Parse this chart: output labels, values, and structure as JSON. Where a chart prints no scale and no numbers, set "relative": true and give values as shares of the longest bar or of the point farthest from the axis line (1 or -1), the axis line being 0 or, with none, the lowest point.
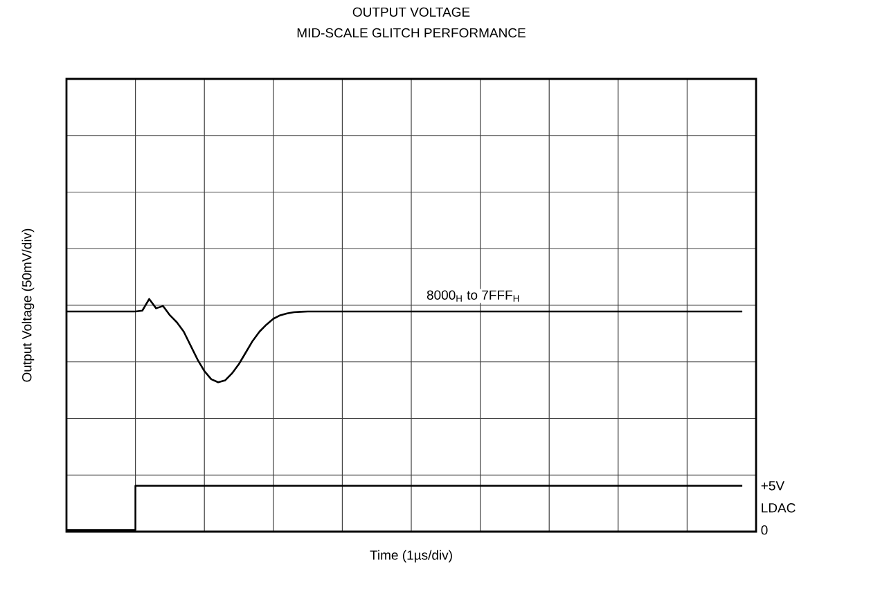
{
  "chart_data": {
    "type": "line",
    "title": "OUTPUT VOLTAGE",
    "subtitle": "MID-SCALE GLITCH PERFORMANCE",
    "xlabel": "Time (1µs/div)",
    "ylabel": "Output Voltage (50mV/div)",
    "relative": true,
    "grid": true,
    "tick_labels": false,
    "categories": [
      null,
      null,
      null,
      null,
      null,
      null,
      null,
      null,
      null,
      null,
      null,
      null,
      null,
      null,
      null,
      null,
      null,
      null,
      null,
      null,
      null,
      null,
      null,
      null,
      null,
      null,
      null,
      null,
      null,
      null,
      null,
      null,
      null,
      null,
      null,
      null,
      null,
      null,
      null,
      null,
      null,
      null,
      null,
      null,
      null,
      null,
      null,
      null,
      null,
      null,
      null,
      null,
      null,
      null,
      null,
      null,
      null,
      null,
      null,
      null,
      null,
      null,
      null,
      null,
      null,
      null,
      null,
      null,
      null,
      null,
      null,
      null,
      null,
      null,
      null,
      null,
      null,
      null,
      null,
      null,
      null,
      null,
      null,
      null,
      null,
      null,
      null,
      null,
      null,
      null,
      null,
      null,
      null,
      null,
      null,
      null,
      null,
      null,
      null,
      null
    ],
    "series": [
      {
        "name": "8000$_{H}$ to 7FFF$_{H}$",
        "color": "#000000",
        "values": [
          0.946,
          0.946,
          0.946,
          0.946,
          0.946,
          0.946,
          0.946,
          0.946,
          0.946,
          0.946,
          0.946,
          0.95,
          1.0,
          0.96,
          0.97,
          0.93,
          0.9,
          0.86,
          0.8,
          0.74,
          0.69,
          0.655,
          0.642,
          0.65,
          0.68,
          0.72,
          0.77,
          0.82,
          0.86,
          0.89,
          0.915,
          0.93,
          0.938,
          0.943,
          0.945,
          0.946,
          0.946,
          0.946,
          0.946,
          0.946,
          0.946,
          0.946,
          0.946,
          0.946,
          0.946,
          0.946,
          0.946,
          0.946,
          0.946,
          0.946,
          0.946,
          0.946,
          0.946,
          0.946,
          0.946,
          0.946,
          0.946,
          0.946,
          0.946,
          0.946,
          0.946,
          0.946,
          0.946,
          0.946,
          0.946,
          0.946,
          0.946,
          0.946,
          0.946,
          0.946,
          0.946,
          0.946,
          0.946,
          0.946,
          0.946,
          0.946,
          0.946,
          0.946,
          0.946,
          0.946,
          0.946,
          0.946,
          0.946,
          0.946,
          0.946,
          0.946,
          0.946,
          0.946,
          0.946,
          0.946,
          0.946,
          0.946,
          0.946,
          0.946,
          0.946,
          0.946,
          0.946,
          0.946,
          0.946,
          null
        ]
      },
      {
        "name": "LDAC",
        "type": "step",
        "color": "#000000",
        "values": [
          0.007,
          0.007,
          0.007,
          0.007,
          0.007,
          0.007,
          0.007,
          0.007,
          0.007,
          0.007,
          0.197,
          0.197,
          0.197,
          0.197,
          0.197,
          0.197,
          0.197,
          0.197,
          0.197,
          0.197,
          0.197,
          0.197,
          0.197,
          0.197,
          0.197,
          0.197,
          0.197,
          0.197,
          0.197,
          0.197,
          0.197,
          0.197,
          0.197,
          0.197,
          0.197,
          0.197,
          0.197,
          0.197,
          0.197,
          0.197,
          0.197,
          0.197,
          0.197,
          0.197,
          0.197,
          0.197,
          0.197,
          0.197,
          0.197,
          0.197,
          0.197,
          0.197,
          0.197,
          0.197,
          0.197,
          0.197,
          0.197,
          0.197,
          0.197,
          0.197,
          0.197,
          0.197,
          0.197,
          0.197,
          0.197,
          0.197,
          0.197,
          0.197,
          0.197,
          0.197,
          0.197,
          0.197,
          0.197,
          0.197,
          0.197,
          0.197,
          0.197,
          0.197,
          0.197,
          0.197,
          0.197,
          0.197,
          0.197,
          0.197,
          0.197,
          0.197,
          0.197,
          0.197,
          0.197,
          0.197,
          0.197,
          0.197,
          0.197,
          0.197,
          0.197,
          0.197,
          0.197,
          0.197,
          0.197,
          null
        ]
      }
    ],
    "annotations": [
      "+5V",
      "0"
    ]
  }
}
